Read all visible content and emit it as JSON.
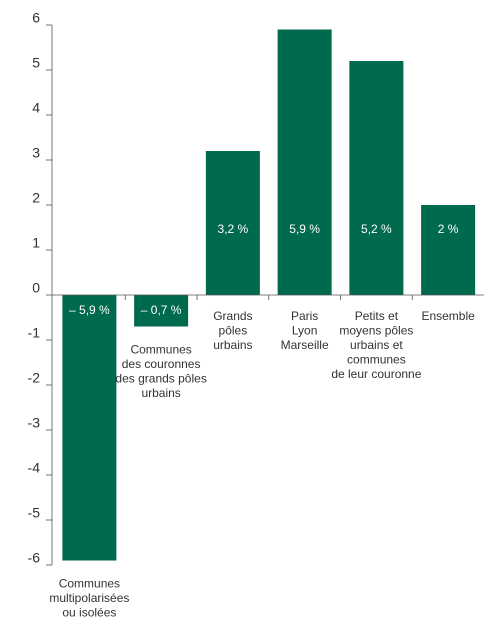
{
  "chart_data": {
    "type": "bar",
    "categories": [
      [
        "Communes",
        "multipolarisées",
        "ou isolées"
      ],
      [
        "Communes",
        "des couronnes",
        "des grands pôles",
        "urbains"
      ],
      [
        "Grands",
        "pôles",
        "urbains"
      ],
      [
        "Paris",
        "Lyon",
        "Marseille"
      ],
      [
        "Petits et",
        "moyens pôles",
        "urbains et",
        "communes",
        "de leur couronne"
      ],
      [
        "Ensemble"
      ]
    ],
    "values": [
      -5.9,
      -0.7,
      3.2,
      5.9,
      5.2,
      2
    ],
    "value_labels": [
      "– 5,9 %",
      "– 0,7 %",
      "3,2 %",
      "5,9 %",
      "5,2 %",
      "2 %"
    ],
    "color": "#006a4e",
    "ylim": [
      -6,
      6
    ],
    "yticks": [
      -6,
      -5,
      -4,
      -3,
      -2,
      -1,
      0,
      1,
      2,
      3,
      4,
      5,
      6
    ],
    "grid": false
  }
}
